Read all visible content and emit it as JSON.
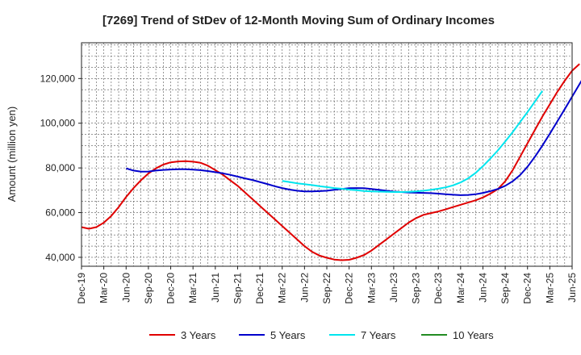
{
  "chart_data": {
    "type": "line",
    "title": "[7269]  Trend of StDev of 12-Month Moving Sum of Ordinary Incomes",
    "ylabel": "Amount (million yen)",
    "xlabel": "",
    "ylim": [
      36000,
      136000
    ],
    "yticks": [
      40000,
      60000,
      80000,
      100000,
      120000
    ],
    "ytick_labels": [
      "40,000",
      "60,000",
      "80,000",
      "100,000",
      "120,000"
    ],
    "x_start": "Dec-19",
    "x_end": "Jun-25",
    "xtick_labels": [
      "Dec-19",
      "Mar-20",
      "Jun-20",
      "Sep-20",
      "Dec-20",
      "Mar-21",
      "Jun-21",
      "Sep-21",
      "Dec-21",
      "Mar-22",
      "Jun-22",
      "Sep-22",
      "Dec-22",
      "Mar-23",
      "Jun-23",
      "Sep-23",
      "Dec-23",
      "Mar-24",
      "Jun-24",
      "Sep-24",
      "Dec-24",
      "Mar-25",
      "Jun-25"
    ],
    "grid": true,
    "legend_position": "bottom",
    "series": [
      {
        "name": "3 Years",
        "color": "#e00000",
        "start_month": 0,
        "values": [
          53500,
          52800,
          53500,
          55500,
          58500,
          62500,
          67000,
          71000,
          74500,
          77500,
          79800,
          81500,
          82500,
          82900,
          83000,
          82800,
          82300,
          81000,
          79000,
          77000,
          74500,
          72000,
          69000,
          66000,
          63000,
          60000,
          57000,
          54000,
          51000,
          48000,
          45000,
          42500,
          40800,
          39800,
          39000,
          38700,
          38900,
          39800,
          41000,
          43000,
          45500,
          48000,
          50500,
          53000,
          55500,
          57500,
          59000,
          59800,
          60500,
          61500,
          62500,
          63500,
          64500,
          65500,
          66800,
          68500,
          70500,
          74000,
          79000,
          85000,
          91000,
          97000,
          103000,
          108500,
          114000,
          119000,
          123500,
          126500
        ]
      },
      {
        "name": "5 Years",
        "color": "#0000cc",
        "start_month": 6,
        "values": [
          79800,
          78800,
          78300,
          78400,
          78800,
          79100,
          79300,
          79400,
          79400,
          79200,
          79000,
          78600,
          78100,
          77600,
          76900,
          76100,
          75300,
          74600,
          73700,
          72800,
          71800,
          71000,
          70300,
          69800,
          69500,
          69500,
          69600,
          69800,
          70200,
          70600,
          70900,
          71000,
          70900,
          70600,
          70200,
          69800,
          69400,
          69200,
          69000,
          68900,
          68800,
          68700,
          68500,
          68200,
          68000,
          67800,
          67900,
          68200,
          68800,
          69600,
          70600,
          72000,
          74000,
          76800,
          80500,
          85000,
          90000,
          95300,
          100800,
          106300,
          111900,
          117500,
          123000,
          128300,
          131200
        ]
      },
      {
        "name": "7 Years",
        "color": "#00e5ee",
        "start_month": 27,
        "values": [
          74200,
          73700,
          73100,
          72700,
          72300,
          71800,
          71400,
          71000,
          70700,
          70300,
          70000,
          69700,
          69500,
          69400,
          69300,
          69200,
          69200,
          69300,
          69500,
          69800,
          70200,
          70700,
          71300,
          72200,
          73500,
          75300,
          77700,
          80800,
          84200,
          87800,
          91800,
          96000,
          100500,
          105000,
          109700,
          114500
        ]
      },
      {
        "name": "10 Years",
        "color": "#228b22",
        "start_month": 0,
        "values": []
      }
    ]
  }
}
